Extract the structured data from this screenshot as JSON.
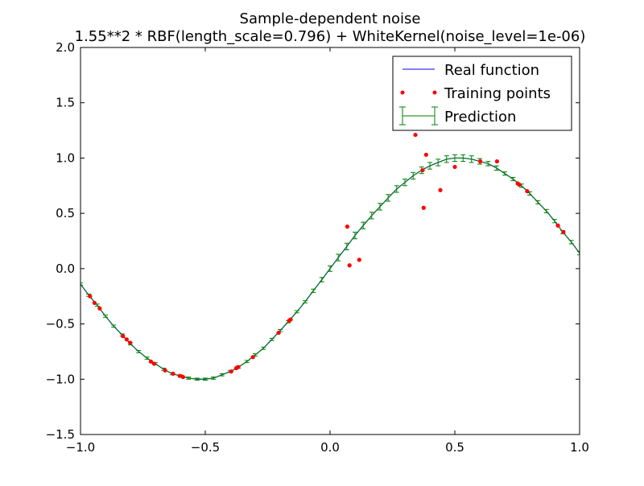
{
  "chart_data": {
    "type": "scatter",
    "title": "Sample-dependent noise",
    "subtitle": "1.55**2 * RBF(length_scale=0.796) + WhiteKernel(noise_level=1e-06)",
    "xlabel": "",
    "ylabel": "",
    "xlim": [
      -1.0,
      1.0
    ],
    "ylim": [
      -1.5,
      2.0
    ],
    "xticks": [
      "−1.0",
      "−0.5",
      "0.0",
      "0.5",
      "1.0"
    ],
    "xtick_values": [
      -1.0,
      -0.5,
      0.0,
      0.5,
      1.0
    ],
    "yticks": [
      "−1.5",
      "−1.0",
      "−0.5",
      "0.0",
      "0.5",
      "1.0",
      "1.5",
      "2.0"
    ],
    "ytick_values": [
      -1.5,
      -1.0,
      -0.5,
      0.0,
      0.5,
      1.0,
      1.5,
      2.0
    ],
    "grid": false,
    "legend_position": "top-right",
    "colors": {
      "real": "#0000ff",
      "points": "#ff0000",
      "prediction": "#008000"
    },
    "series": [
      {
        "name": "Real function",
        "kind": "line",
        "x": [
          -1.0,
          -0.967,
          -0.933,
          -0.9,
          -0.867,
          -0.833,
          -0.8,
          -0.767,
          -0.733,
          -0.7,
          -0.667,
          -0.633,
          -0.6,
          -0.567,
          -0.533,
          -0.5,
          -0.467,
          -0.433,
          -0.4,
          -0.367,
          -0.333,
          -0.3,
          -0.267,
          -0.233,
          -0.2,
          -0.167,
          -0.133,
          -0.1,
          -0.067,
          -0.033,
          0.0,
          0.033,
          0.067,
          0.1,
          0.133,
          0.167,
          0.2,
          0.233,
          0.267,
          0.3,
          0.333,
          0.367,
          0.4,
          0.433,
          0.467,
          0.5,
          0.533,
          0.567,
          0.6,
          0.633,
          0.667,
          0.7,
          0.733,
          0.767,
          0.8,
          0.833,
          0.867,
          0.9,
          0.933,
          0.967,
          1.0
        ],
        "y": [
          -0.14,
          -0.24,
          -0.33,
          -0.43,
          -0.52,
          -0.6,
          -0.68,
          -0.75,
          -0.81,
          -0.86,
          -0.91,
          -0.95,
          -0.97,
          -0.99,
          -1.0,
          -1.0,
          -0.99,
          -0.96,
          -0.93,
          -0.89,
          -0.84,
          -0.78,
          -0.72,
          -0.64,
          -0.56,
          -0.48,
          -0.39,
          -0.3,
          -0.2,
          -0.1,
          0.0,
          0.1,
          0.2,
          0.3,
          0.39,
          0.48,
          0.56,
          0.64,
          0.72,
          0.78,
          0.84,
          0.89,
          0.93,
          0.96,
          0.99,
          1.0,
          1.0,
          0.99,
          0.97,
          0.95,
          0.91,
          0.86,
          0.81,
          0.75,
          0.68,
          0.6,
          0.52,
          0.43,
          0.33,
          0.24,
          0.14
        ]
      },
      {
        "name": "Training points",
        "kind": "scatter",
        "x": [
          -0.962,
          -0.944,
          -0.923,
          -0.83,
          -0.815,
          -0.801,
          -0.718,
          -0.705,
          -0.661,
          -0.629,
          -0.602,
          -0.589,
          -0.396,
          -0.376,
          -0.368,
          -0.309,
          -0.206,
          -0.164,
          -0.158,
          0.069,
          0.078,
          0.117,
          0.342,
          0.371,
          0.375,
          0.385,
          0.442,
          0.5,
          0.602,
          0.669,
          0.752,
          0.758,
          0.79,
          0.913,
          0.935
        ],
        "y": [
          -0.25,
          -0.31,
          -0.36,
          -0.61,
          -0.64,
          -0.67,
          -0.84,
          -0.86,
          -0.92,
          -0.95,
          -0.97,
          -0.98,
          -0.93,
          -0.9,
          -0.89,
          -0.8,
          -0.58,
          -0.47,
          -0.46,
          0.38,
          0.03,
          0.08,
          1.21,
          0.89,
          0.55,
          1.03,
          0.71,
          0.92,
          0.97,
          0.97,
          0.77,
          0.76,
          0.7,
          0.39,
          0.33
        ]
      },
      {
        "name": "Prediction",
        "kind": "errorbar",
        "x": [
          -1.0,
          -0.967,
          -0.933,
          -0.9,
          -0.867,
          -0.833,
          -0.8,
          -0.767,
          -0.733,
          -0.7,
          -0.667,
          -0.633,
          -0.6,
          -0.567,
          -0.533,
          -0.5,
          -0.467,
          -0.433,
          -0.4,
          -0.367,
          -0.333,
          -0.3,
          -0.267,
          -0.233,
          -0.2,
          -0.167,
          -0.133,
          -0.1,
          -0.067,
          -0.033,
          0.0,
          0.033,
          0.067,
          0.1,
          0.133,
          0.167,
          0.2,
          0.233,
          0.267,
          0.3,
          0.333,
          0.367,
          0.4,
          0.433,
          0.467,
          0.5,
          0.533,
          0.567,
          0.6,
          0.633,
          0.667,
          0.7,
          0.733,
          0.767,
          0.8,
          0.833,
          0.867,
          0.9,
          0.933,
          0.967,
          1.0
        ],
        "y": [
          -0.14,
          -0.24,
          -0.33,
          -0.43,
          -0.52,
          -0.6,
          -0.68,
          -0.75,
          -0.81,
          -0.86,
          -0.91,
          -0.95,
          -0.97,
          -0.99,
          -1.0,
          -1.0,
          -0.99,
          -0.96,
          -0.93,
          -0.89,
          -0.84,
          -0.78,
          -0.72,
          -0.64,
          -0.56,
          -0.48,
          -0.39,
          -0.3,
          -0.2,
          -0.1,
          0.0,
          0.1,
          0.2,
          0.3,
          0.39,
          0.48,
          0.56,
          0.64,
          0.72,
          0.78,
          0.84,
          0.89,
          0.93,
          0.96,
          0.99,
          1.0,
          1.0,
          0.99,
          0.97,
          0.95,
          0.91,
          0.86,
          0.81,
          0.75,
          0.68,
          0.6,
          0.52,
          0.43,
          0.33,
          0.24,
          0.14
        ],
        "err": [
          0.01,
          0.01,
          0.01,
          0.01,
          0.01,
          0.01,
          0.01,
          0.01,
          0.01,
          0.01,
          0.01,
          0.01,
          0.01,
          0.01,
          0.01,
          0.01,
          0.01,
          0.01,
          0.01,
          0.01,
          0.01,
          0.01,
          0.01,
          0.01,
          0.01,
          0.01,
          0.01,
          0.01,
          0.015,
          0.02,
          0.025,
          0.03,
          0.03,
          0.03,
          0.03,
          0.03,
          0.03,
          0.03,
          0.03,
          0.03,
          0.03,
          0.03,
          0.03,
          0.03,
          0.03,
          0.03,
          0.03,
          0.03,
          0.025,
          0.02,
          0.02,
          0.015,
          0.015,
          0.015,
          0.015,
          0.015,
          0.015,
          0.015,
          0.015,
          0.015,
          0.015
        ]
      }
    ]
  }
}
